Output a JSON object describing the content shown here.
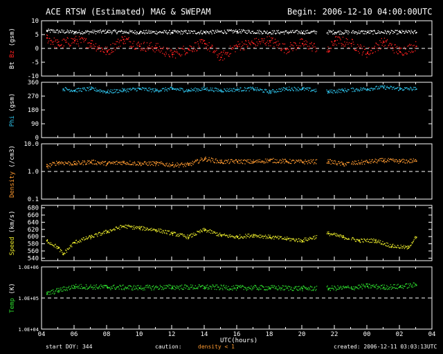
{
  "header": {
    "title": "ACE RTSW (Estimated) MAG & SWEPAM",
    "begin": "Begin: 2006-12-10 04:00:00UTC"
  },
  "footer": {
    "start_doy": "start DOY: 344",
    "caution": "caution:",
    "caution_flag": "density < 1",
    "created": "created: 2006-12-11 03:03:13UTC"
  },
  "colors": {
    "bt": "#ffffff",
    "bz": "#ff2020",
    "phi": "#2ec0e8",
    "density": "#ff9a30",
    "speed": "#e6e62a",
    "temp": "#2ee02e",
    "axis": "#ffffff",
    "caution": "#ff9a30"
  },
  "chart_data": {
    "type": "scatter",
    "x_axis": {
      "label": "UTC(hours)",
      "range_hours": [
        4,
        28
      ],
      "tick_labels": [
        "04",
        "06",
        "08",
        "10",
        "12",
        "14",
        "16",
        "18",
        "20",
        "22",
        "00",
        "02",
        "04"
      ]
    },
    "data_gaps_hours": [
      [
        20.9,
        21.5
      ],
      [
        22.9,
        23.0
      ]
    ],
    "panels": [
      {
        "id": "mag",
        "ylabel_parts": [
          {
            "text": "Bt",
            "color": "#ffffff"
          },
          {
            "text": " Bz",
            "color": "#ff2020"
          },
          {
            "text": " (gsm)",
            "color": "#ffffff"
          }
        ],
        "ylim": [
          -10,
          10
        ],
        "scale": "linear",
        "ticks": [
          10,
          5,
          0,
          -5,
          -10
        ],
        "tick_labels": [
          "10",
          "5",
          "0",
          "-5",
          "-10"
        ],
        "dashed_line_at": 0,
        "series": [
          {
            "name": "Bt",
            "color": "#ffffff",
            "x": [
              4.3,
              6,
              8,
              10,
              12,
              14,
              16,
              18,
              20,
              22,
              24,
              26,
              27
            ],
            "y": [
              6.5,
              6.0,
              6.2,
              6.0,
              6.0,
              6.0,
              6.3,
              6.0,
              6.0,
              6.0,
              6.0,
              6.0,
              6.0
            ]
          },
          {
            "name": "Bz",
            "color": "#ff2020",
            "x": [
              4.3,
              5,
              6,
              7,
              8,
              9,
              10,
              11,
              12,
              13,
              14,
              15,
              16,
              17,
              18,
              19,
              20,
              21.6,
              22,
              23,
              24,
              25,
              26,
              27
            ],
            "y": [
              4.0,
              1.5,
              3.0,
              2.0,
              -1.0,
              3.5,
              1.0,
              0.5,
              -2.0,
              0.0,
              2.0,
              -3.0,
              1.0,
              2.0,
              3.0,
              0.0,
              2.0,
              -1.0,
              3.0,
              2.0,
              -1.5,
              2.5,
              -1.0,
              1.0
            ]
          }
        ]
      },
      {
        "id": "phi",
        "ylabel_parts": [
          {
            "text": "Phi",
            "color": "#2ec0e8"
          },
          {
            "text": " (gsm)",
            "color": "#ffffff"
          }
        ],
        "ylim": [
          0,
          360
        ],
        "scale": "linear",
        "ticks": [
          360,
          270,
          180,
          90,
          0
        ],
        "tick_labels": [
          "360",
          "270",
          "180",
          "90",
          "0"
        ],
        "series": [
          {
            "name": "Phi",
            "color": "#2ec0e8",
            "x": [
              5.3,
              6,
              7,
              8,
              9,
              10,
              11,
              12,
              13,
              14,
              15,
              16,
              17,
              18,
              19,
              20,
              21.6,
              22.5,
              24,
              25,
              26,
              27
            ],
            "y": [
              320,
              310,
              320,
              300,
              310,
              320,
              310,
              320,
              310,
              320,
              310,
              315,
              320,
              300,
              320,
              320,
              300,
              310,
              320,
              330,
              320,
              320
            ]
          }
        ]
      },
      {
        "id": "density",
        "ylabel_parts": [
          {
            "text": "Density",
            "color": "#ff9a30"
          },
          {
            "text": " (/cm3)",
            "color": "#ffffff"
          }
        ],
        "ylim": [
          0.1,
          10
        ],
        "scale": "log",
        "ticks": [
          10,
          1,
          0.1
        ],
        "tick_labels": [
          "10.0",
          "1.0",
          "0.1"
        ],
        "dashed_line_at": 1,
        "series": [
          {
            "name": "Density",
            "color": "#ff9a30",
            "x": [
              4.3,
              5,
              6,
              7,
              8,
              9,
              10,
              11,
              12,
              13,
              14,
              15,
              16,
              17,
              18,
              19,
              20,
              21.6,
              22.5,
              24,
              25,
              26,
              27
            ],
            "y": [
              1.6,
              2.2,
              2.0,
              2.3,
              2.0,
              2.2,
              2.0,
              2.0,
              1.8,
              1.8,
              3.0,
              2.3,
              2.4,
              2.3,
              2.6,
              2.4,
              2.3,
              2.4,
              1.9,
              2.3,
              2.6,
              2.4,
              2.5
            ]
          }
        ]
      },
      {
        "id": "speed",
        "ylabel_parts": [
          {
            "text": "Speed",
            "color": "#e6e62a"
          },
          {
            "text": " (km/s)",
            "color": "#ffffff"
          }
        ],
        "ylim": [
          533,
          687
        ],
        "scale": "linear",
        "ticks": [
          680,
          660,
          640,
          620,
          600,
          580,
          560,
          540
        ],
        "tick_labels": [
          "680",
          "660",
          "640",
          "620",
          "600",
          "580",
          "560",
          "540"
        ],
        "series": [
          {
            "name": "Speed",
            "color": "#e6e62a",
            "x": [
              4.3,
              5,
              5.3,
              6,
              7,
              8,
              9,
              10,
              11,
              12,
              13,
              14,
              15,
              16,
              17,
              18,
              19,
              20,
              21.6,
              22.5,
              23.5,
              24.5,
              25.5,
              26.5,
              27
            ],
            "y": [
              590,
              570,
              552,
              585,
              600,
              615,
              630,
              625,
              620,
              610,
              600,
              620,
              605,
              600,
              605,
              600,
              595,
              590,
              610,
              600,
              590,
              590,
              575,
              570,
              600
            ]
          }
        ]
      },
      {
        "id": "temp",
        "ylabel_parts": [
          {
            "text": "Temp",
            "color": "#2ee02e"
          },
          {
            "text": " (K)",
            "color": "#ffffff"
          }
        ],
        "ylim": [
          10000,
          1000000
        ],
        "scale": "log",
        "ticks": [
          1000000,
          100000,
          10000
        ],
        "tick_labels": [
          "1.0E+06",
          "1.0E+05",
          "1.0E+04"
        ],
        "dashed_line_at": 100000,
        "series": [
          {
            "name": "Temp",
            "color": "#2ee02e",
            "x": [
              4.3,
              5,
              6,
              8,
              10,
              12,
              14,
              16,
              18,
              20,
              21.6,
              23,
              24,
              25,
              26,
              27
            ],
            "y": [
              140000,
              180000,
              240000,
              230000,
              220000,
              230000,
              230000,
              220000,
              220000,
              210000,
              210000,
              220000,
              250000,
              230000,
              240000,
              270000
            ]
          }
        ]
      }
    ]
  }
}
